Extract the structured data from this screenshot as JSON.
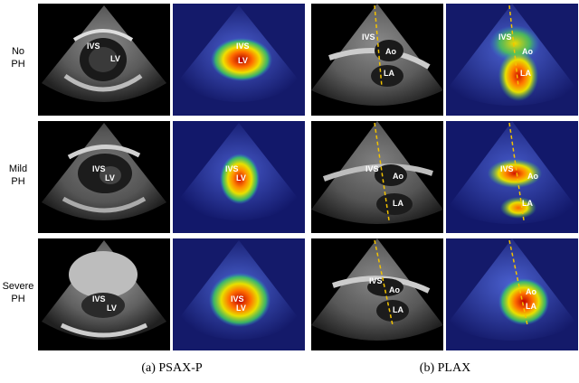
{
  "row_labels": [
    {
      "line1": "No",
      "line2": "PH"
    },
    {
      "line1": "Mild",
      "line2": "PH"
    },
    {
      "line1": "Severe",
      "line2": "PH"
    }
  ],
  "structures": {
    "ivs": "IVS",
    "lv": "LV",
    "ao": "Ao",
    "la": "LA"
  },
  "captions": {
    "psax": "(a) PSAX-P",
    "plax": "(b) PLAX"
  }
}
